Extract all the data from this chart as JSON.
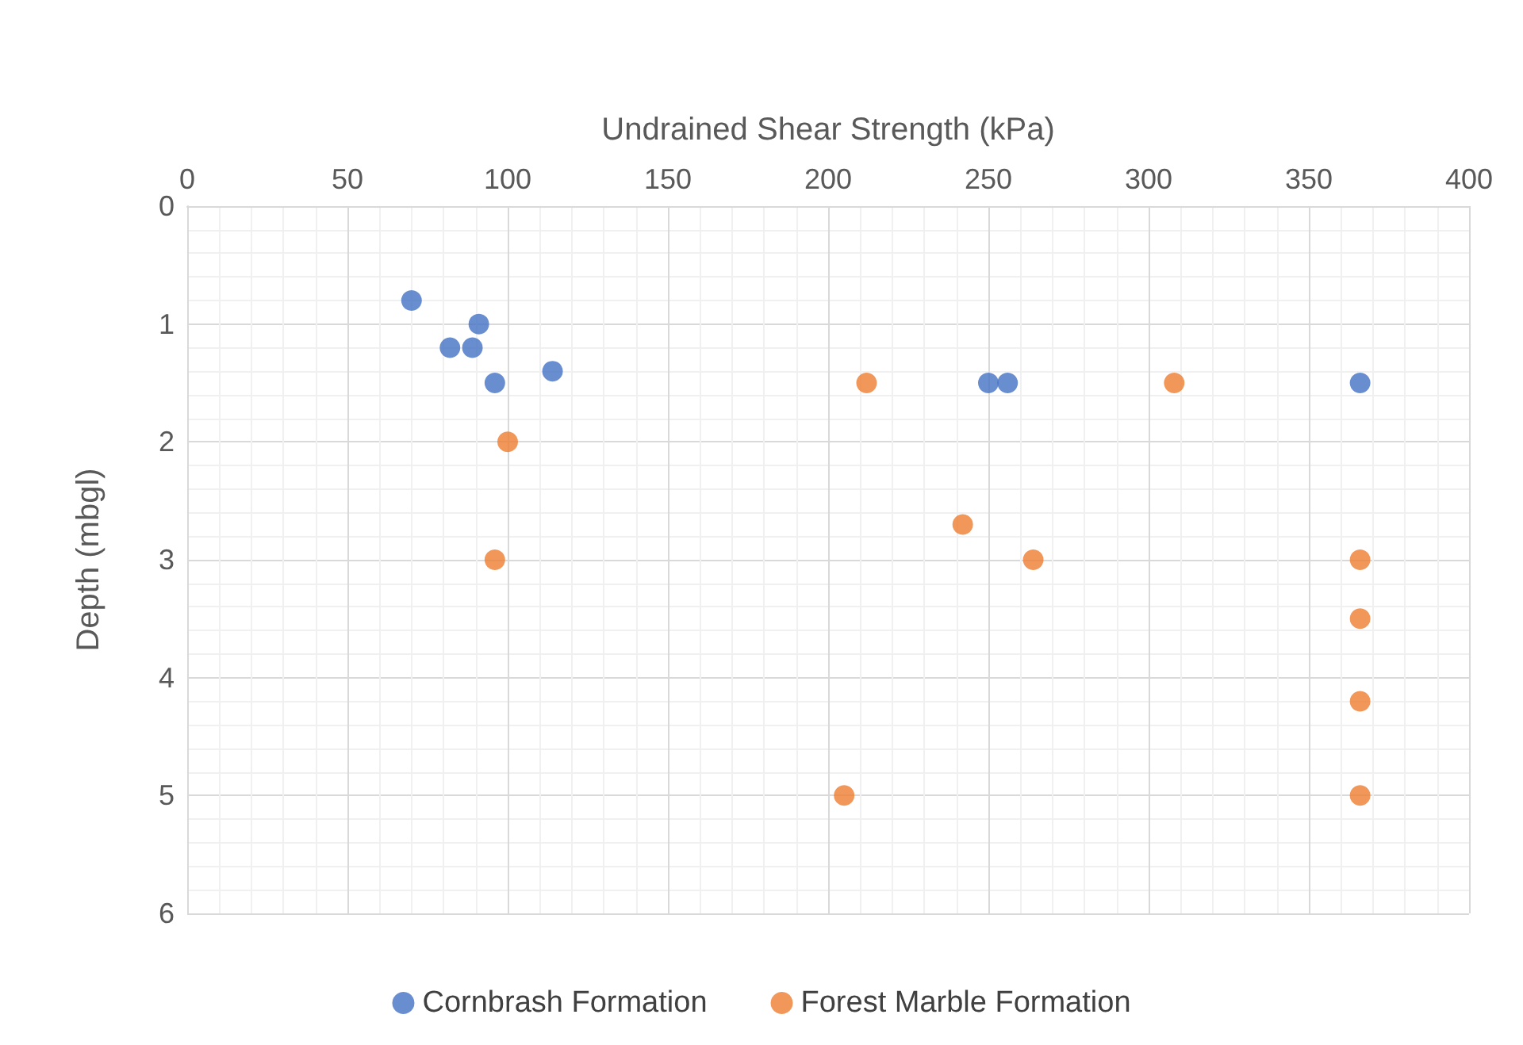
{
  "chart_data": {
    "type": "scatter",
    "xlabel": "Undrained Shear Strength (kPa)",
    "ylabel": "Depth (mbgl)",
    "xlim": [
      0,
      400
    ],
    "xticks": [
      0,
      50,
      100,
      150,
      200,
      250,
      300,
      350,
      400
    ],
    "ylim": [
      6,
      0
    ],
    "yticks": [
      0,
      1,
      2,
      3,
      4,
      5,
      6
    ],
    "grid": true,
    "legend": "bottom",
    "marker": "circle",
    "series": [
      {
        "name": "Cornbrash Formation",
        "color": "#4472c4",
        "x": [
          70,
          91,
          82,
          89,
          96,
          114,
          250,
          256,
          366
        ],
        "values": [
          0.8,
          1.0,
          1.2,
          1.2,
          1.5,
          1.4,
          1.5,
          1.5,
          1.5
        ]
      },
      {
        "name": "Forest Marble Formation",
        "color": "#ed7d31",
        "x": [
          212,
          308,
          100,
          96,
          242,
          264,
          366,
          366,
          366,
          205,
          366
        ],
        "values": [
          1.5,
          1.5,
          2.0,
          3.0,
          2.7,
          3.0,
          3.0,
          3.5,
          4.2,
          5.0,
          5.0
        ]
      }
    ]
  }
}
